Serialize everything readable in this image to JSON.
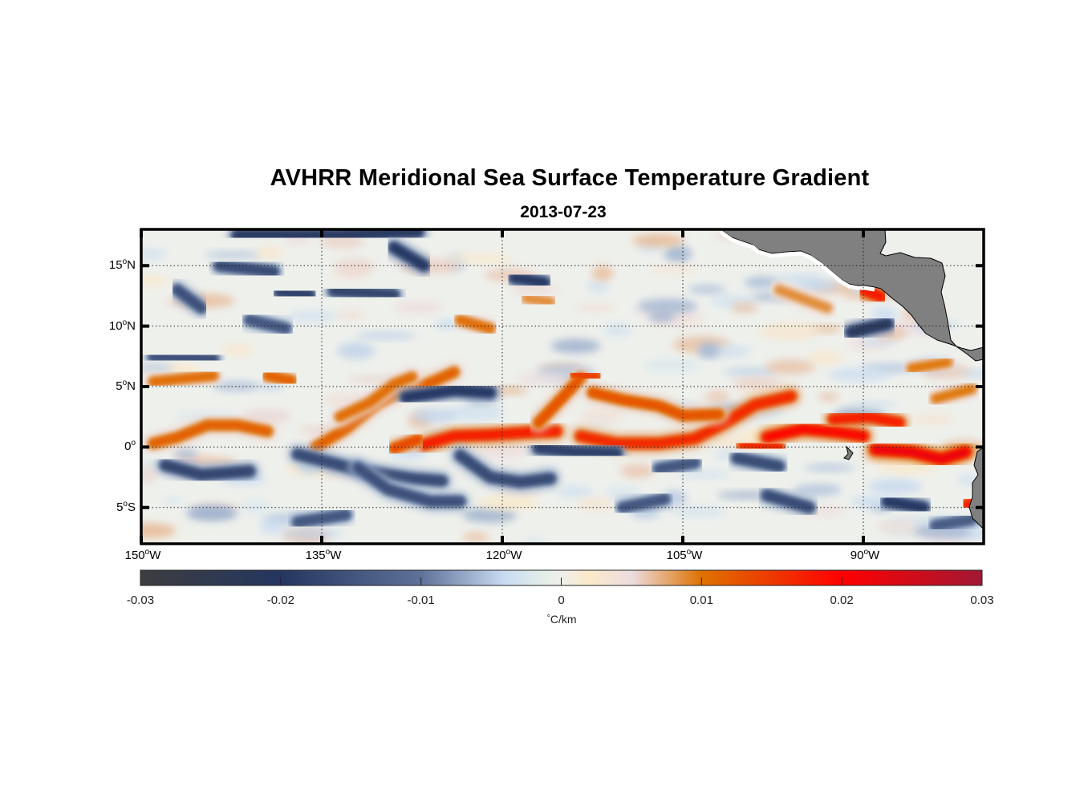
{
  "chart_data": {
    "type": "heatmap",
    "title": "AVHRR Meridional Sea Surface Temperature Gradient",
    "subtitle": "2013-07-23",
    "projection": "equirectangular",
    "lon_range": [
      -150,
      -80
    ],
    "lat_range": [
      -8,
      18
    ],
    "x_ticks": [
      {
        "value": -150,
        "deg": "150",
        "hemi": "W"
      },
      {
        "value": -135,
        "deg": "135",
        "hemi": "W"
      },
      {
        "value": -120,
        "deg": "120",
        "hemi": "W"
      },
      {
        "value": -105,
        "deg": "105",
        "hemi": "W"
      },
      {
        "value": -90,
        "deg": "90",
        "hemi": "W"
      }
    ],
    "y_ticks": [
      {
        "value": 15,
        "deg": "15",
        "hemi": "N"
      },
      {
        "value": 10,
        "deg": "10",
        "hemi": "N"
      },
      {
        "value": 5,
        "deg": "5",
        "hemi": "N"
      },
      {
        "value": 0,
        "deg": "0",
        "hemi": ""
      },
      {
        "value": -5,
        "deg": "5",
        "hemi": "S"
      }
    ],
    "grid": "dotted",
    "colorbar": {
      "orientation": "horizontal",
      "placement": "bottom",
      "range": [
        -0.03,
        0.03
      ],
      "ticks": [
        "-0.03",
        "-0.02",
        "-0.01",
        "0",
        "0.01",
        "0.02",
        "0.03"
      ],
      "tick_values": [
        -0.03,
        -0.02,
        -0.01,
        0,
        0.01,
        0.02,
        0.03
      ],
      "unit_symbol": "°",
      "unit_text": "C/km",
      "stops": [
        {
          "v": -0.03,
          "color": "#3d3d3f"
        },
        {
          "v": -0.02,
          "color": "#243660"
        },
        {
          "v": -0.01,
          "color": "#5e7299"
        },
        {
          "v": -0.004,
          "color": "#c9dcf2"
        },
        {
          "v": -0.001,
          "color": "#e6efe8"
        },
        {
          "v": 0.0,
          "color": "#efefec"
        },
        {
          "v": 0.002,
          "color": "#fbe9c8"
        },
        {
          "v": 0.005,
          "color": "#ecdde0"
        },
        {
          "v": 0.01,
          "color": "#de7200"
        },
        {
          "v": 0.02,
          "color": "#fe0000"
        },
        {
          "v": 0.03,
          "color": "#a11834"
        }
      ]
    },
    "land_color": "#808080",
    "features": [
      {
        "kind": "front",
        "value": 0.012,
        "pts": [
          [
            -149,
            0.3
          ],
          [
            -147,
            0.8
          ],
          [
            -144.5,
            1.8
          ],
          [
            -142,
            1.8
          ],
          [
            -139.5,
            1.3
          ]
        ]
      },
      {
        "kind": "front",
        "value": 0.012,
        "pts": [
          [
            -135.5,
            0
          ],
          [
            -133,
            1.5
          ],
          [
            -130.5,
            3.5
          ],
          [
            -128.5,
            4.6
          ],
          [
            -126,
            5.3
          ],
          [
            -124,
            6.2
          ]
        ]
      },
      {
        "kind": "front",
        "value": 0.011,
        "pts": [
          [
            -133.5,
            2.5
          ],
          [
            -131,
            3.7
          ],
          [
            -129,
            5.2
          ],
          [
            -127.5,
            5.8
          ]
        ]
      },
      {
        "kind": "front",
        "value": 0.018,
        "pts": [
          [
            -126.5,
            0.2
          ],
          [
            -124,
            0.9
          ],
          [
            -121,
            1.0
          ],
          [
            -118,
            1.2
          ],
          [
            -115.5,
            1.3
          ]
        ]
      },
      {
        "kind": "front",
        "value": 0.014,
        "pts": [
          [
            -129,
            -0.1
          ],
          [
            -127,
            0.6
          ]
        ]
      },
      {
        "kind": "front",
        "value": 0.013,
        "pts": [
          [
            -117,
            2
          ],
          [
            -115,
            4.1
          ],
          [
            -113.5,
            5.7
          ]
        ]
      },
      {
        "kind": "front",
        "value": 0.017,
        "pts": [
          [
            -113.5,
            0.9
          ],
          [
            -110.5,
            0.3
          ],
          [
            -107,
            0.3
          ],
          [
            -104,
            0.7
          ],
          [
            -101.5,
            2.0
          ],
          [
            -99,
            3.5
          ],
          [
            -96,
            4.2
          ]
        ]
      },
      {
        "kind": "front",
        "value": 0.013,
        "pts": [
          [
            -112.5,
            4.5
          ],
          [
            -110,
            3.9
          ],
          [
            -107,
            3.4
          ],
          [
            -105,
            2.6
          ],
          [
            -102,
            2.7
          ]
        ]
      },
      {
        "kind": "front",
        "value": 0.015,
        "pts": [
          [
            -114,
            6.0
          ],
          [
            -112.2,
            5.8
          ]
        ]
      },
      {
        "kind": "front",
        "value": 0.02,
        "pts": [
          [
            -98,
            0.8
          ],
          [
            -95,
            1.5
          ],
          [
            -92,
            1.2
          ],
          [
            -90,
            0.9
          ]
        ]
      },
      {
        "kind": "front",
        "value": 0.017,
        "pts": [
          [
            -100,
            0.2
          ],
          [
            -97,
            0.0
          ]
        ]
      },
      {
        "kind": "front",
        "value": 0.022,
        "pts": [
          [
            -89,
            -0.2
          ],
          [
            -86,
            -0.4
          ],
          [
            -83.5,
            -1.0
          ],
          [
            -81.5,
            -0.4
          ]
        ]
      },
      {
        "kind": "front",
        "value": 0.018,
        "pts": [
          [
            -92.5,
            2.3
          ],
          [
            -89.5,
            2.5
          ],
          [
            -87,
            2.0
          ]
        ]
      },
      {
        "kind": "front",
        "value": 0.019,
        "pts": [
          [
            -90,
            13.0
          ],
          [
            -88.5,
            12.4
          ]
        ]
      },
      {
        "kind": "front",
        "value": 0.011,
        "pts": [
          [
            -144,
            5.9
          ],
          [
            -149,
            5.4
          ]
        ]
      },
      {
        "kind": "front",
        "value": 0.012,
        "pts": [
          [
            -139.5,
            5.9
          ],
          [
            -137.5,
            5.5
          ]
        ]
      },
      {
        "kind": "front",
        "value": 0.011,
        "pts": [
          [
            -123.5,
            10.5
          ],
          [
            -121,
            9.8
          ]
        ]
      },
      {
        "kind": "front",
        "value": 0.01,
        "pts": [
          [
            -86,
            6.5
          ],
          [
            -83,
            7
          ]
        ]
      },
      {
        "kind": "front",
        "value": 0.01,
        "pts": [
          [
            -84,
            4
          ],
          [
            -81,
            4.8
          ]
        ]
      },
      {
        "kind": "front",
        "value": 0.009,
        "pts": [
          [
            -97,
            13
          ],
          [
            -93,
            11.5
          ]
        ]
      },
      {
        "kind": "front",
        "value": 0.009,
        "pts": [
          [
            -118,
            12.3
          ],
          [
            -116,
            12
          ]
        ]
      },
      {
        "kind": "front",
        "value": 0.018,
        "pts": [
          [
            -81.5,
            -4.8
          ],
          [
            -80.5,
            -4.5
          ]
        ]
      },
      {
        "kind": "front",
        "value": -0.018,
        "pts": [
          [
            -148,
            -1.5
          ],
          [
            -145,
            -2.3
          ],
          [
            -141,
            -2.0
          ]
        ]
      },
      {
        "kind": "front",
        "value": -0.017,
        "pts": [
          [
            -137,
            -0.6
          ],
          [
            -131.5,
            -2.0
          ],
          [
            -127.5,
            -2.6
          ],
          [
            -125,
            -2.8
          ]
        ]
      },
      {
        "kind": "front",
        "value": -0.017,
        "pts": [
          [
            -123.5,
            -0.7
          ],
          [
            -121,
            -2.5
          ],
          [
            -118.5,
            -2.9
          ],
          [
            -116,
            -2.6
          ]
        ]
      },
      {
        "kind": "front",
        "value": -0.019,
        "pts": [
          [
            -117,
            -0.1
          ],
          [
            -114,
            -0.4
          ],
          [
            -110.5,
            -0.5
          ]
        ]
      },
      {
        "kind": "front",
        "value": -0.016,
        "pts": [
          [
            -132,
            -1.7
          ],
          [
            -129.5,
            -3.5
          ],
          [
            -126,
            -4.5
          ],
          [
            -123.5,
            -4.5
          ]
        ]
      },
      {
        "kind": "front",
        "value": -0.02,
        "pts": [
          [
            -128,
            4.1
          ],
          [
            -124,
            4.7
          ],
          [
            -121,
            4.5
          ]
        ]
      },
      {
        "kind": "front",
        "value": -0.017,
        "pts": [
          [
            -143.5,
            15
          ],
          [
            -139,
            14.5
          ]
        ]
      },
      {
        "kind": "front",
        "value": -0.019,
        "pts": [
          [
            -138.5,
            12.8
          ],
          [
            -136,
            12.6
          ]
        ]
      },
      {
        "kind": "front",
        "value": -0.021,
        "pts": [
          [
            -142,
            17.5
          ],
          [
            -134,
            17.5
          ],
          [
            -127,
            17.8
          ]
        ]
      },
      {
        "kind": "front",
        "value": -0.02,
        "pts": [
          [
            -129,
            16.5
          ],
          [
            -126.5,
            15
          ]
        ]
      },
      {
        "kind": "front",
        "value": -0.018,
        "pts": [
          [
            -134,
            12.9
          ],
          [
            -129,
            12.6
          ]
        ]
      },
      {
        "kind": "front",
        "value": -0.016,
        "pts": [
          [
            -147,
            13
          ],
          [
            -145,
            11.5
          ]
        ]
      },
      {
        "kind": "front",
        "value": -0.016,
        "pts": [
          [
            -149,
            7.5
          ],
          [
            -144,
            7.3
          ]
        ]
      },
      {
        "kind": "front",
        "value": -0.015,
        "pts": [
          [
            -141,
            10.5
          ],
          [
            -138,
            9.8
          ]
        ]
      },
      {
        "kind": "front",
        "value": -0.02,
        "pts": [
          [
            -119,
            14
          ],
          [
            -116.5,
            13.6
          ]
        ]
      },
      {
        "kind": "front",
        "value": -0.022,
        "pts": [
          [
            -91,
            9.5
          ],
          [
            -88,
            10.2
          ]
        ]
      },
      {
        "kind": "front",
        "value": -0.02,
        "pts": [
          [
            -88,
            -4.5
          ],
          [
            -85,
            -5
          ]
        ]
      },
      {
        "kind": "front",
        "value": -0.017,
        "pts": [
          [
            -98,
            -4
          ],
          [
            -94.5,
            -5
          ]
        ]
      },
      {
        "kind": "front",
        "value": -0.017,
        "pts": [
          [
            -100.5,
            -0.9
          ],
          [
            -97,
            -1.6
          ]
        ]
      },
      {
        "kind": "front",
        "value": -0.015,
        "pts": [
          [
            -110,
            -5
          ],
          [
            -106.5,
            -4.3
          ]
        ]
      },
      {
        "kind": "front",
        "value": -0.015,
        "pts": [
          [
            -137,
            -6.2
          ],
          [
            -133,
            -5.6
          ]
        ]
      },
      {
        "kind": "front",
        "value": -0.015,
        "pts": [
          [
            -107,
            -1.8
          ],
          [
            -104,
            -1.3
          ]
        ]
      },
      {
        "kind": "front",
        "value": -0.014,
        "pts": [
          [
            -84,
            -6.5
          ],
          [
            -81,
            -6.0
          ]
        ]
      }
    ]
  }
}
